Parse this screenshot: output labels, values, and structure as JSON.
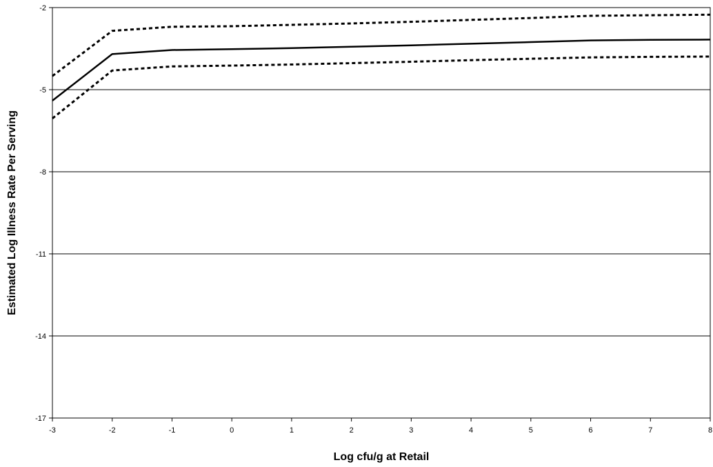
{
  "chart_data": {
    "type": "line",
    "title": "",
    "xlabel": "Log cfu/g at Retail",
    "ylabel": "Estimated Log Illness Rate Per Serving",
    "xlim": [
      -3,
      8
    ],
    "ylim": [
      -17,
      -2
    ],
    "x_ticks": [
      -3,
      -2,
      -1,
      0,
      1,
      2,
      3,
      4,
      5,
      6,
      7,
      8
    ],
    "y_ticks": [
      -17,
      -14,
      -11,
      -8,
      -5,
      -2
    ],
    "grid": "horizontal",
    "legend": "none",
    "series": [
      {
        "style": "dashed",
        "color": "#000000",
        "x": [
          -3,
          -2,
          -1,
          0,
          1,
          2,
          3,
          4,
          5,
          6,
          7,
          8
        ],
        "y": [
          -4.5,
          -2.85,
          -2.7,
          -2.68,
          -2.63,
          -2.58,
          -2.52,
          -2.45,
          -2.38,
          -2.3,
          -2.28,
          -2.26
        ]
      },
      {
        "style": "solid",
        "color": "#000000",
        "x": [
          -3,
          -2,
          -1,
          0,
          1,
          2,
          3,
          4,
          5,
          6,
          7,
          8
        ],
        "y": [
          -5.4,
          -3.7,
          -3.55,
          -3.52,
          -3.48,
          -3.43,
          -3.38,
          -3.32,
          -3.26,
          -3.2,
          -3.18,
          -3.17
        ]
      },
      {
        "style": "dashed",
        "color": "#000000",
        "x": [
          -3,
          -2,
          -1,
          0,
          1,
          2,
          3,
          4,
          5,
          6,
          7,
          8
        ],
        "y": [
          -6.05,
          -4.3,
          -4.15,
          -4.12,
          -4.08,
          -4.03,
          -3.98,
          -3.92,
          -3.87,
          -3.82,
          -3.8,
          -3.79
        ]
      }
    ]
  }
}
